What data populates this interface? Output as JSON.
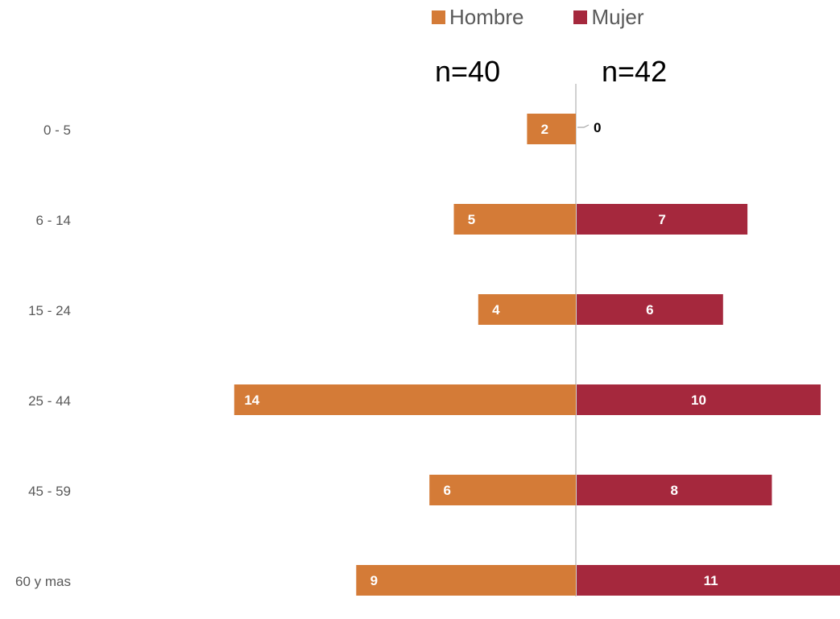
{
  "colors": {
    "hombre": "#D47B37",
    "mujer": "#A5283D",
    "axis": "#D0D0D0",
    "cat_label": "#595959"
  },
  "legend": {
    "hombre": "Hombre",
    "mujer": "Mujer"
  },
  "n_labels": {
    "hombre": "n=40",
    "mujer": "n=42"
  },
  "chart_data": {
    "type": "bar",
    "orientation": "horizontal-diverging",
    "categories": [
      "0 - 5",
      "6 - 14",
      "15 - 24",
      "25 - 44",
      "45 - 59",
      "60 y mas"
    ],
    "series": [
      {
        "name": "Hombre",
        "values": [
          2,
          5,
          4,
          14,
          6,
          9
        ]
      },
      {
        "name": "Mujer",
        "values": [
          0,
          7,
          6,
          10,
          8,
          11
        ]
      }
    ],
    "legend_position": "top",
    "grid": false
  }
}
